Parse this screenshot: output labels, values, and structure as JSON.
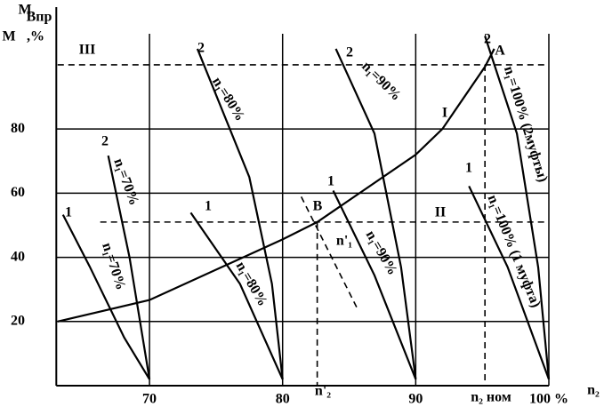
{
  "chart_data": {
    "type": "line",
    "xlim": [
      63,
      100
    ],
    "ylim": [
      0,
      118
    ],
    "xticks": [
      70,
      80,
      90,
      {
        "value": 100,
        "label": "100 %"
      }
    ],
    "yticks": [
      20,
      40,
      60,
      80
    ],
    "grid": true,
    "color": "#000000",
    "series": [
      {
        "x": [
          63.1,
          70,
          80,
          82.6,
          90,
          92,
          95.2,
          95.9
        ],
        "values": [
          20,
          26.7,
          45.6,
          51,
          72,
          80,
          99.4,
          105
        ],
        "dashed": false
      },
      {
        "x": [
          63.5,
          65.5,
          68.1,
          70
        ],
        "values": [
          53.3,
          37.2,
          15,
          2
        ],
        "dashed": false
      },
      {
        "x": [
          66.9,
          68.5,
          70
        ],
        "values": [
          71.7,
          40,
          2
        ],
        "dashed": false
      },
      {
        "x": [
          73.1,
          76.8,
          80
        ],
        "values": [
          53.9,
          31.7,
          2
        ],
        "dashed": false
      },
      {
        "x": [
          73.6,
          77.5,
          79.2,
          80
        ],
        "values": [
          105,
          65,
          31.7,
          2
        ],
        "dashed": false
      },
      {
        "x": [
          83.8,
          86.9,
          90
        ],
        "values": [
          60.8,
          34.4,
          2
        ],
        "dashed": false
      },
      {
        "x": [
          84,
          86.9,
          88.9,
          90
        ],
        "values": [
          105,
          78.6,
          36.9,
          2
        ],
        "dashed": false
      },
      {
        "x": [
          94,
          96.9,
          100
        ],
        "values": [
          62.2,
          37,
          2
        ],
        "dashed": false
      },
      {
        "x": [
          95.2,
          97.6,
          99.2,
          100
        ],
        "values": [
          109,
          78.6,
          36.9,
          2
        ],
        "dashed": false
      },
      {
        "x": [
          81.4,
          85.7
        ],
        "values": [
          58.9,
          23.3
        ],
        "dashed": true
      },
      {
        "x": [
          63.1,
          99.7
        ],
        "values": [
          100,
          100
        ],
        "dashed": true
      },
      {
        "x": [
          66.3,
          99.7
        ],
        "values": [
          51,
          51
        ],
        "dashed": true
      },
      {
        "x": [
          95.2,
          95.2
        ],
        "values": [
          100,
          0
        ],
        "dashed": true
      },
      {
        "x": [
          82.6,
          82.6
        ],
        "values": [
          51,
          0
        ],
        "dashed": true
      }
    ],
    "annotations": [
      "M",
      "Впр",
      "M",
      ",%",
      "III",
      "I",
      "II",
      "A",
      "B",
      "n₂",
      "n'₂",
      "n₂ ном",
      "1",
      "n₁=70%",
      "2",
      "n₁=70%",
      "1",
      "n₁=80%",
      "2",
      "n₁=80%",
      "1",
      "n₁=90%",
      "2",
      "n₁=90%",
      "n'₁",
      "2",
      "n₁=100% (2муфты)",
      "1",
      "n₁=100% (1 муфта)"
    ]
  }
}
